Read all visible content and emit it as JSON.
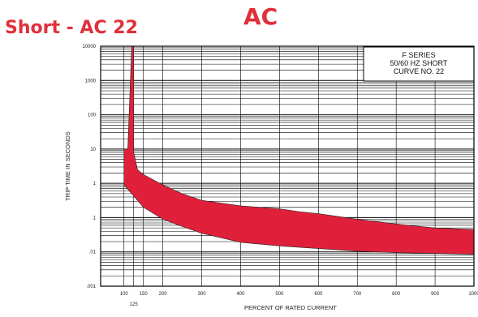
{
  "header": {
    "title": "AC",
    "subtitle": "Short - AC 22"
  },
  "chart_data": {
    "type": "area",
    "xlabel": "PERCENT OF RATED CURRENT",
    "ylabel": "TRIP TIME IN SECONDS",
    "xlim": [
      40,
      1000
    ],
    "ylim_log": [
      0.001,
      10000
    ],
    "x_ticks": [
      {
        "value": 100,
        "label": "100"
      },
      {
        "value": 125,
        "label": "125"
      },
      {
        "value": 150,
        "label": "150"
      },
      {
        "value": 200,
        "label": "200"
      },
      {
        "value": 300,
        "label": "300"
      },
      {
        "value": 400,
        "label": "400"
      },
      {
        "value": 500,
        "label": "500"
      },
      {
        "value": 600,
        "label": "600"
      },
      {
        "value": 700,
        "label": "700"
      },
      {
        "value": 800,
        "label": "800"
      },
      {
        "value": 900,
        "label": "900"
      },
      {
        "value": 1000,
        "label": "1000"
      }
    ],
    "y_ticks": [
      {
        "value": 10000,
        "label": "10000"
      },
      {
        "value": 1000,
        "label": "1000"
      },
      {
        "value": 100,
        "label": "100"
      },
      {
        "value": 10,
        "label": "10"
      },
      {
        "value": 1,
        "label": "1"
      },
      {
        "value": 0.1,
        "label": ".1"
      },
      {
        "value": 0.01,
        "label": ".01"
      },
      {
        "value": 0.001,
        "label": ".001"
      }
    ],
    "legend_lines": [
      "F SERIES",
      "50/60 HZ SHORT",
      "CURVE NO. 22"
    ],
    "legend_position": "top-right",
    "band_color": "#e0203a",
    "band": {
      "upper": [
        {
          "x": 120,
          "y": 10000
        },
        {
          "x": 125,
          "y": 10000
        },
        {
          "x": 125,
          "y": 8
        },
        {
          "x": 135,
          "y": 2.5
        },
        {
          "x": 150,
          "y": 1.8
        },
        {
          "x": 200,
          "y": 0.9
        },
        {
          "x": 250,
          "y": 0.5
        },
        {
          "x": 300,
          "y": 0.32
        },
        {
          "x": 400,
          "y": 0.22
        },
        {
          "x": 500,
          "y": 0.18
        },
        {
          "x": 550,
          "y": 0.15
        },
        {
          "x": 600,
          "y": 0.13
        },
        {
          "x": 700,
          "y": 0.09
        },
        {
          "x": 800,
          "y": 0.065
        },
        {
          "x": 900,
          "y": 0.05
        },
        {
          "x": 1000,
          "y": 0.045
        }
      ],
      "lower": [
        {
          "x": 1000,
          "y": 0.0085
        },
        {
          "x": 900,
          "y": 0.009
        },
        {
          "x": 800,
          "y": 0.0095
        },
        {
          "x": 700,
          "y": 0.0105
        },
        {
          "x": 600,
          "y": 0.0125
        },
        {
          "x": 500,
          "y": 0.015
        },
        {
          "x": 400,
          "y": 0.019
        },
        {
          "x": 300,
          "y": 0.035
        },
        {
          "x": 250,
          "y": 0.055
        },
        {
          "x": 200,
          "y": 0.09
        },
        {
          "x": 150,
          "y": 0.2
        },
        {
          "x": 120,
          "y": 0.5
        },
        {
          "x": 100,
          "y": 0.9
        },
        {
          "x": 100,
          "y": 10
        },
        {
          "x": 110,
          "y": 10
        },
        {
          "x": 120,
          "y": 10000
        }
      ]
    }
  }
}
